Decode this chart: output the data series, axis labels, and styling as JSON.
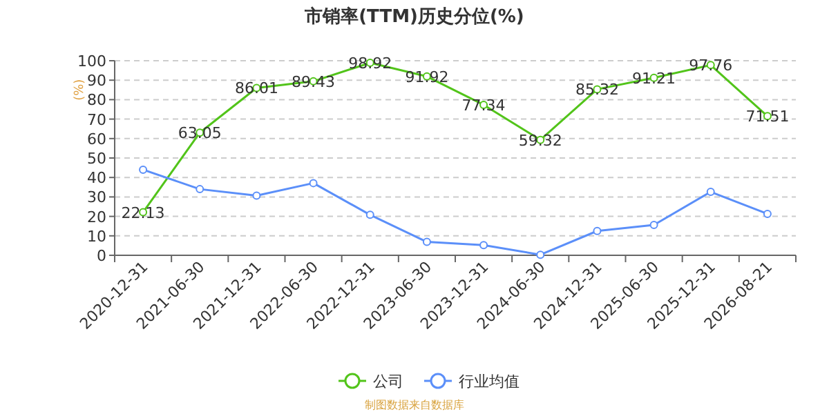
{
  "chart_data": {
    "type": "line",
    "title": "市销率(TTM)历史分位(%)",
    "ylabel": "(%)",
    "categories": [
      "2020-12-31",
      "2021-06-30",
      "2021-12-31",
      "2022-06-30",
      "2022-12-31",
      "2023-06-30",
      "2023-12-31",
      "2024-06-30",
      "2024-12-31",
      "2025-06-30",
      "2025-12-31",
      "2026-08-21"
    ],
    "series": [
      {
        "name": "公司",
        "color": "#52c41a",
        "values": [
          22.13,
          63.05,
          86.01,
          89.43,
          98.92,
          91.92,
          77.34,
          59.32,
          85.32,
          91.21,
          97.76,
          71.51
        ],
        "value_labels": [
          "22.13",
          "63.05",
          "86.01",
          "89.43",
          "98.92",
          "91.92",
          "77.34",
          "59.32",
          "85.32",
          "91.21",
          "97.76",
          "71.51"
        ]
      },
      {
        "name": "行业均值",
        "color": "#5b8ff9",
        "values": [
          44,
          34,
          30.7,
          37.1,
          20.8,
          6.9,
          5.2,
          0.3,
          12.5,
          15.6,
          32.6,
          21.3
        ]
      }
    ],
    "ylim": [
      0,
      100
    ],
    "yticks": [
      0,
      10,
      20,
      30,
      40,
      50,
      60,
      70,
      80,
      90,
      100
    ],
    "grid": "y",
    "legend": "bottom",
    "marker": "circle",
    "annotations": [
      "制图数据来自数据库"
    ]
  }
}
